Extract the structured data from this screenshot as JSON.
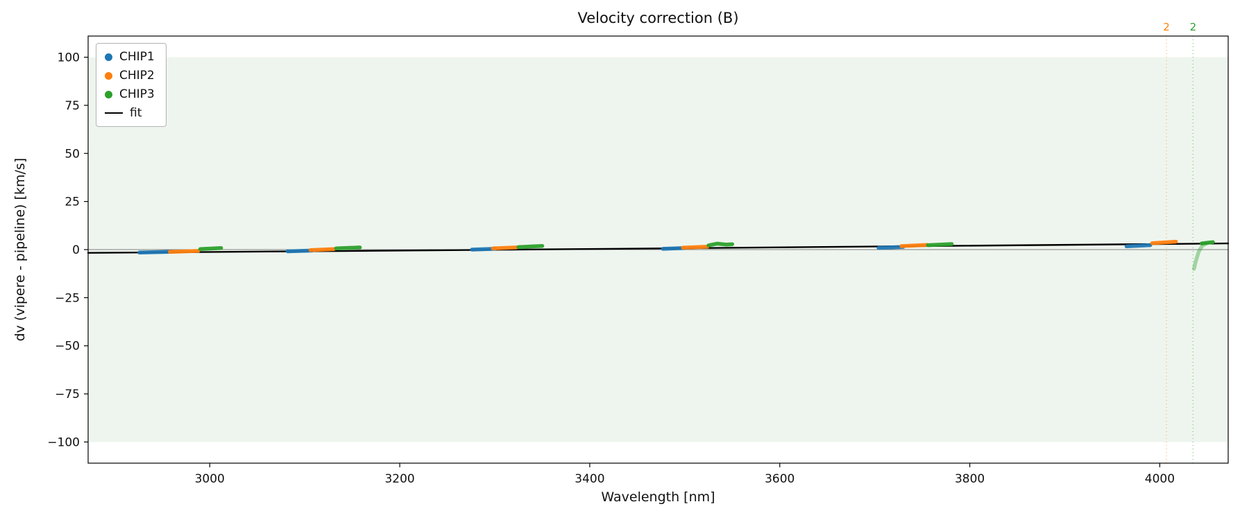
{
  "chart_data": {
    "type": "scatter",
    "title": "Velocity correction (B)",
    "xlabel": "Wavelength [nm]",
    "ylabel": "dv (vipere - pipeline) [km/s]",
    "xlim": [
      2872,
      4072
    ],
    "ylim": [
      -111,
      111
    ],
    "grid": false,
    "legend_position": "upper left",
    "xticks": {
      "values": [
        3000,
        3200,
        3400,
        3600,
        3800,
        4000
      ],
      "labels": [
        "3000",
        "3200",
        "3400",
        "3600",
        "3800",
        "4000"
      ]
    },
    "yticks": {
      "values": [
        100,
        75,
        50,
        25,
        0,
        -25,
        -50,
        -75,
        -100
      ],
      "labels": [
        "100",
        "75",
        "50",
        "25",
        "0",
        "−25",
        "−50",
        "−75",
        "−100"
      ]
    },
    "band": {
      "ymin": -100,
      "ymax": 100,
      "color": "#eef5ee"
    },
    "zero_line": {
      "y": 0,
      "color": "#808080"
    },
    "legend": [
      {
        "label": "CHIP1",
        "color": "#1f77b4",
        "marker": "dot"
      },
      {
        "label": "CHIP2",
        "color": "#ff7f0e",
        "marker": "dot"
      },
      {
        "label": "CHIP3",
        "color": "#2ca02c",
        "marker": "dot"
      },
      {
        "label": "fit",
        "color": "#000000",
        "marker": "line"
      }
    ],
    "series": [
      {
        "name": "CHIP1",
        "color": "#1f77b4",
        "segments": [
          {
            "pts": [
              [
                2926,
                -1.5
              ],
              [
                2960,
                -1.1
              ]
            ]
          },
          {
            "pts": [
              [
                3082,
                -0.9
              ],
              [
                3108,
                -0.5
              ]
            ]
          },
          {
            "pts": [
              [
                3276,
                0.0
              ],
              [
                3300,
                0.4
              ]
            ]
          },
          {
            "pts": [
              [
                3477,
                0.4
              ],
              [
                3500,
                0.8
              ]
            ]
          },
          {
            "pts": [
              [
                3704,
                0.9
              ],
              [
                3730,
                1.4
              ]
            ]
          },
          {
            "pts": [
              [
                3965,
                1.7
              ],
              [
                3990,
                2.3
              ]
            ]
          }
        ]
      },
      {
        "name": "CHIP2",
        "color": "#ff7f0e",
        "segments": [
          {
            "pts": [
              [
                2958,
                -1.2
              ],
              [
                2988,
                -0.7
              ]
            ]
          },
          {
            "pts": [
              [
                3106,
                -0.3
              ],
              [
                3131,
                0.3
              ]
            ]
          },
          {
            "pts": [
              [
                3298,
                0.6
              ],
              [
                3323,
                1.1
              ]
            ]
          },
          {
            "pts": [
              [
                3498,
                1.0
              ],
              [
                3524,
                1.5
              ]
            ]
          },
          {
            "pts": [
              [
                3728,
                1.8
              ],
              [
                3755,
                2.4
              ]
            ]
          },
          {
            "pts": [
              [
                3992,
                3.3
              ],
              [
                4017,
                4.1
              ]
            ]
          }
        ]
      },
      {
        "name": "CHIP3",
        "color": "#2ca02c",
        "segments": [
          {
            "pts": [
              [
                2990,
                0.3
              ],
              [
                3012,
                0.8
              ]
            ]
          },
          {
            "pts": [
              [
                3133,
                0.6
              ],
              [
                3158,
                1.1
              ]
            ]
          },
          {
            "pts": [
              [
                3325,
                1.3
              ],
              [
                3350,
                1.9
              ]
            ]
          },
          {
            "pts": [
              [
                3525,
                2.2
              ],
              [
                3534,
                3.1
              ],
              [
                3544,
                2.6
              ],
              [
                3550,
                2.8
              ]
            ]
          },
          {
            "pts": [
              [
                3756,
                2.3
              ],
              [
                3781,
                2.9
              ]
            ]
          },
          {
            "pts": [
              [
                4044,
                3.2
              ],
              [
                4056,
                3.9
              ]
            ]
          },
          {
            "pts": [
              [
                4036,
                -10.0
              ],
              [
                4038,
                -6.0
              ],
              [
                4041,
                -1.0
              ],
              [
                4045,
                2.2
              ],
              [
                4051,
                3.6
              ]
            ],
            "alpha": 0.4
          }
        ]
      }
    ],
    "fit": {
      "color": "#000000",
      "points": [
        [
          2872,
          -1.7
        ],
        [
          3172,
          -0.6
        ],
        [
          3472,
          0.6
        ],
        [
          3772,
          1.9
        ],
        [
          4072,
          3.2
        ]
      ]
    },
    "vlines": [
      {
        "x": 4007,
        "color": "#ff7f0e",
        "label": "2",
        "style": "dotted"
      },
      {
        "x": 4035,
        "color": "#2ca02c",
        "label": "2",
        "style": "dotted"
      }
    ]
  }
}
